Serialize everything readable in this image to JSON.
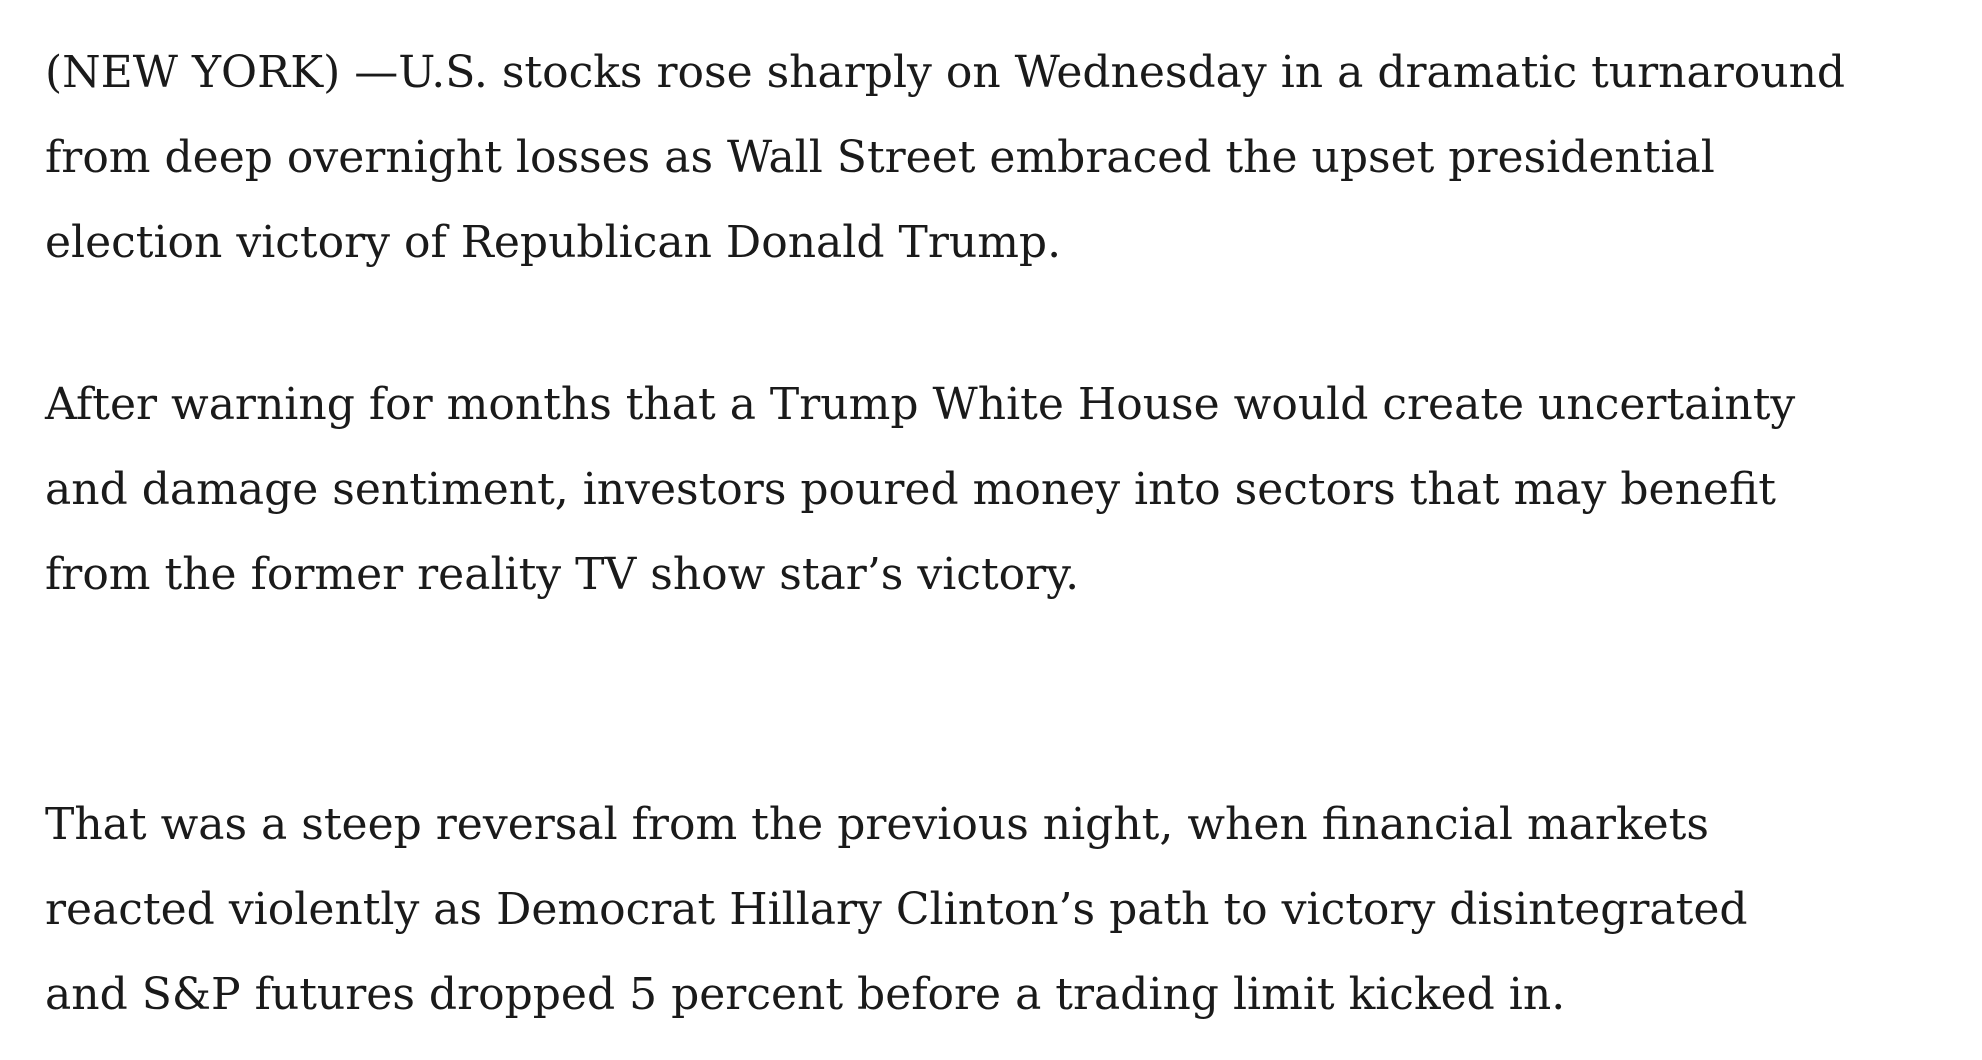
{
  "article": {
    "paragraphs": [
      {
        "lines": [
          "(NEW YORK) —U.S. stocks rose sharply on Wednesday in a dramatic turnaround",
          "from deep overnight losses as Wall Street embraced the upset presidential",
          "election victory of Republican Donald Trump."
        ]
      },
      {
        "lines": [
          "After warning for months that a Trump White House would create uncertainty",
          "and damage sentiment, investors poured money into sectors that may benefit",
          "from the former reality TV show star’s victory."
        ]
      },
      {
        "lines": [
          "That was a steep reversal from the previous night, when financial markets",
          "reacted violently as Democrat Hillary Clinton’s path to victory disintegrated",
          "and S&P futures dropped 5 percent before a trading limit kicked in."
        ]
      }
    ]
  }
}
